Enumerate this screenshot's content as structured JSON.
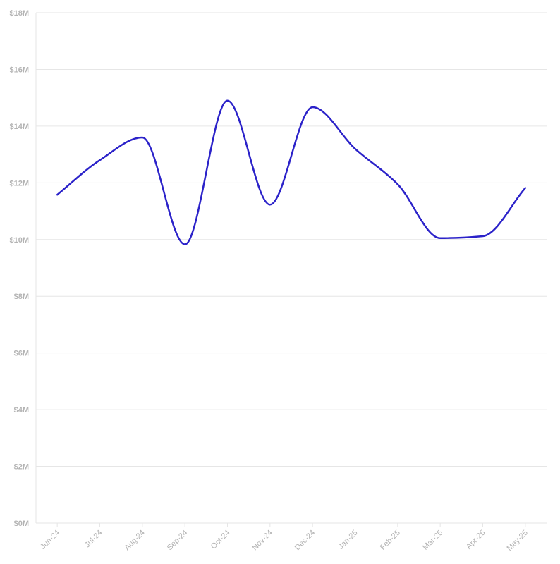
{
  "chart_data": {
    "type": "line",
    "title": "",
    "xlabel": "",
    "ylabel": "",
    "categories": [
      "Jun-24",
      "Jul-24",
      "Aug-24",
      "Sep-24",
      "Oct-24",
      "Nov-24",
      "Dec-24",
      "Jan-25",
      "Feb-25",
      "Mar-25",
      "Apr-25",
      "May-25"
    ],
    "series": [
      {
        "color": "#2b22c9",
        "values": [
          11.58,
          12.8,
          13.6,
          9.83,
          14.9,
          11.23,
          14.67,
          13.2,
          11.95,
          10.05,
          10.12,
          11.82
        ]
      }
    ],
    "y_unit": "millions USD",
    "ylim": [
      0,
      18
    ],
    "y_ticks": [
      0,
      2,
      4,
      6,
      8,
      10,
      12,
      14,
      16,
      18
    ],
    "y_tick_labels": [
      "$0M",
      "$2M",
      "$4M",
      "$6M",
      "$8M",
      "$10M",
      "$12M",
      "$14M",
      "$16M",
      "$18M"
    ],
    "grid": true,
    "legend": "none",
    "colors": {
      "grid": "#e6e6e6",
      "tick_label": "#b3b3b3"
    }
  }
}
